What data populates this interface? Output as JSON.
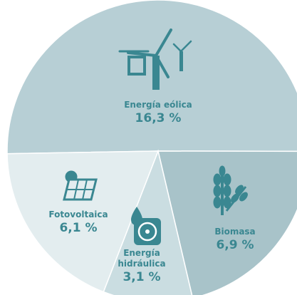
{
  "chart_data": {
    "type": "pie",
    "categories": [
      "Energía eólica",
      "Biomasa",
      "Energía hidráulica",
      "Fotovoltaica"
    ],
    "values": [
      16.3,
      6.9,
      3.1,
      6.1
    ],
    "value_labels": [
      "16,3 %",
      "6,9 %",
      "3,1 %",
      "6,1 %"
    ],
    "colors": [
      "#b7cfd5",
      "#a8c3c9",
      "#cadde1",
      "#e3edef"
    ]
  }
}
